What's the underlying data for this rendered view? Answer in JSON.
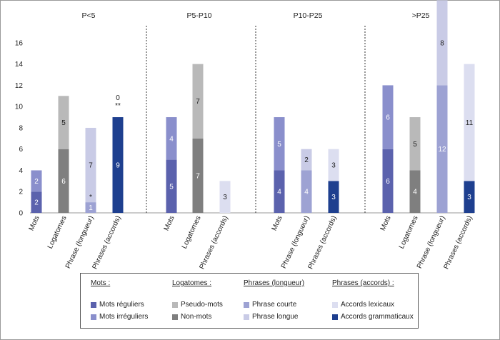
{
  "chart_data": {
    "type": "bar",
    "stacked": true,
    "ylim": [
      0,
      17
    ],
    "yticks": [
      0,
      2,
      4,
      6,
      8,
      10,
      12,
      14,
      16
    ],
    "grid": false,
    "colors": {
      "mots_reguliers": "#5b62ad",
      "mots_irreguliers": "#8a8fcc",
      "pseudo_mots": "#b9b9b9",
      "non_mots": "#7f7f7f",
      "phrase_courte": "#9da2d3",
      "phrase_longue": "#c9cbe6",
      "accords_lexicaux": "#dcdef0",
      "accords_grammaticaux": "#1e3f8f"
    },
    "groups": [
      {
        "title": "P<5",
        "bars": [
          {
            "label": "Mots",
            "segments": [
              {
                "series": "mots_reguliers",
                "value": 2,
                "label": "2"
              },
              {
                "series": "mots_irreguliers",
                "value": 2,
                "label": "2"
              }
            ]
          },
          {
            "label": "Logatomes",
            "segments": [
              {
                "series": "non_mots",
                "value": 6,
                "label": "6"
              },
              {
                "series": "pseudo_mots",
                "value": 5,
                "label": "5"
              }
            ]
          },
          {
            "label": "Phrase (longueur)",
            "segments": [
              {
                "series": "phrase_courte",
                "value": 1,
                "label": "1"
              },
              {
                "series": "phrase_longue",
                "value": 7,
                "label": "7"
              }
            ],
            "annotation": "*"
          },
          {
            "label": "Phrases (accords)",
            "segments": [
              {
                "series": "accords_grammaticaux",
                "value": 9,
                "label": "9"
              }
            ],
            "top_labels": [
              "0",
              "**"
            ]
          }
        ]
      },
      {
        "title": "P5-P10",
        "bars": [
          {
            "label": "Mots",
            "segments": [
              {
                "series": "mots_reguliers",
                "value": 5,
                "label": "5"
              },
              {
                "series": "mots_irreguliers",
                "value": 4,
                "label": "4"
              }
            ]
          },
          {
            "label": "Logatomes",
            "segments": [
              {
                "series": "non_mots",
                "value": 7,
                "label": "7"
              },
              {
                "series": "pseudo_mots",
                "value": 7,
                "label": "7"
              }
            ]
          },
          {
            "label": "Phrases (accords)",
            "segments": [
              {
                "series": "accords_lexicaux",
                "value": 3,
                "label": "3"
              }
            ]
          }
        ]
      },
      {
        "title": "P10-P25",
        "bars": [
          {
            "label": "Mots",
            "segments": [
              {
                "series": "mots_reguliers",
                "value": 4,
                "label": "4"
              },
              {
                "series": "mots_irreguliers",
                "value": 5,
                "label": "5"
              }
            ]
          },
          {
            "label": "Phrase (longueur)",
            "segments": [
              {
                "series": "phrase_courte",
                "value": 4,
                "label": "4"
              },
              {
                "series": "phrase_longue",
                "value": 2,
                "label": "2"
              }
            ]
          },
          {
            "label": "Phrases (accords)",
            "segments": [
              {
                "series": "accords_grammaticaux",
                "value": 3,
                "label": "3"
              },
              {
                "series": "accords_lexicaux",
                "value": 3,
                "label": "3"
              }
            ]
          }
        ]
      },
      {
        "title": ">P25",
        "bars": [
          {
            "label": "Mots",
            "segments": [
              {
                "series": "mots_reguliers",
                "value": 6,
                "label": "6"
              },
              {
                "series": "mots_irreguliers",
                "value": 6,
                "label": "6"
              }
            ]
          },
          {
            "label": "Logatomes",
            "segments": [
              {
                "series": "non_mots",
                "value": 4,
                "label": "4"
              },
              {
                "series": "pseudo_mots",
                "value": 5,
                "label": "5"
              }
            ]
          },
          {
            "label": "Phrase (longueur)",
            "segments": [
              {
                "series": "phrase_courte",
                "value": 12,
                "label": "12"
              },
              {
                "series": "phrase_longue",
                "value": 8,
                "label": "8"
              }
            ]
          },
          {
            "label": "Phrases (accords)",
            "segments": [
              {
                "series": "accords_grammaticaux",
                "value": 3,
                "label": "3"
              },
              {
                "series": "accords_lexicaux",
                "value": 11,
                "label": "11"
              }
            ]
          }
        ]
      }
    ],
    "legend": {
      "position": "bottom",
      "columns": [
        {
          "heading": "Mots :",
          "items": [
            {
              "series": "mots_reguliers",
              "label": "Mots réguliers"
            },
            {
              "series": "mots_irreguliers",
              "label": "Mots irréguliers"
            }
          ]
        },
        {
          "heading": "Logatomes :",
          "items": [
            {
              "series": "pseudo_mots",
              "label": "Pseudo-mots"
            },
            {
              "series": "non_mots",
              "label": "Non-mots"
            }
          ]
        },
        {
          "heading": "Phrases (longueur)",
          "items": [
            {
              "series": "phrase_courte",
              "label": "Phrase courte"
            },
            {
              "series": "phrase_longue",
              "label": "Phrase longue"
            }
          ]
        },
        {
          "heading": "Phrases (accords) :",
          "items": [
            {
              "series": "accords_lexicaux",
              "label": "Accords lexicaux"
            },
            {
              "series": "accords_grammaticaux",
              "label": "Accords grammaticaux"
            }
          ]
        }
      ]
    }
  }
}
